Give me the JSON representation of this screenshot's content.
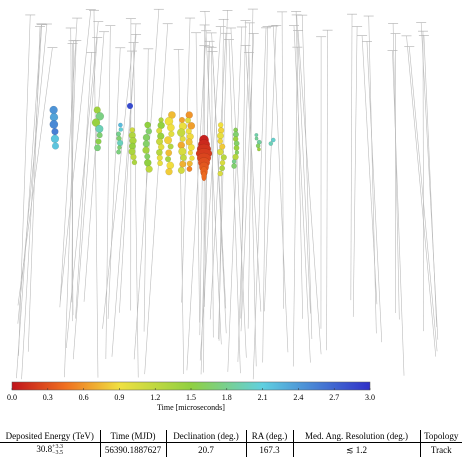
{
  "colorbar": {
    "label": "Time [microseconds]",
    "range": [
      0,
      3
    ],
    "ticks": [
      {
        "value": 0,
        "label": "0.0"
      },
      {
        "value": 0.3,
        "label": "0.3"
      },
      {
        "value": 0.6,
        "label": "0.6"
      },
      {
        "value": 0.9,
        "label": "0.9"
      },
      {
        "value": 1.2,
        "label": "1.2"
      },
      {
        "value": 1.5,
        "label": "1.5"
      },
      {
        "value": 1.8,
        "label": "1.8"
      },
      {
        "value": 2.1,
        "label": "2.1"
      },
      {
        "value": 2.4,
        "label": "2.4"
      },
      {
        "value": 2.7,
        "label": "2.7"
      },
      {
        "value": 3,
        "label": "3.0"
      }
    ]
  },
  "table": {
    "headers": [
      "Deposited Energy (TeV)",
      "Time (MJD)",
      "Declination (deg.)",
      "RA (deg.)",
      "Med. Ang. Resolution (deg.)",
      "Topology"
    ],
    "row": {
      "energy": "30.8",
      "energy_plus": "+3.3",
      "energy_minus": "−3.5",
      "time": "56390.1887627",
      "declination": "20.7",
      "ra": "167.3",
      "resolution": "≲ 1.2",
      "topology": "Track"
    }
  }
}
